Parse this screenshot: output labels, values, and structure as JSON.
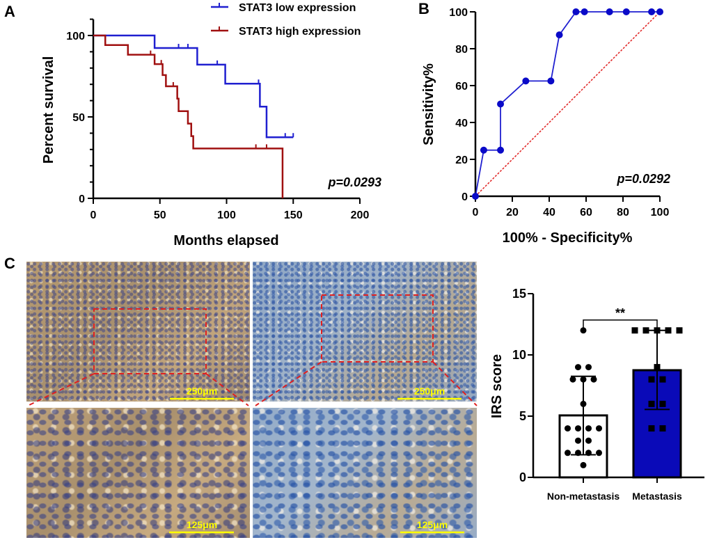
{
  "panel_labels": {
    "a": "A",
    "b": "B",
    "c": "C"
  },
  "colors": {
    "blue": "#1f1fd0",
    "red": "#a01010",
    "bar_fill": "#0a0ab8",
    "dashed": "#e02020",
    "scale": "#ffff00"
  },
  "chart_data": [
    {
      "type": "line",
      "subtype": "kaplan-meier",
      "xlabel": "Months elapsed",
      "ylabel": "Percent survival",
      "xlim": [
        0,
        200
      ],
      "ylim": [
        0,
        110
      ],
      "xticks": [
        "0",
        "50",
        "100",
        "150",
        "200"
      ],
      "yticks": [
        "0",
        "50",
        "100"
      ],
      "legend_position": "top-right",
      "annotation": "p=0.0293",
      "series": [
        {
          "name": "STAT3 low expression",
          "color": "#1f1fd0",
          "steps": [
            [
              0,
              100
            ],
            [
              46,
              92.3
            ],
            [
              78,
              82.1
            ],
            [
              99,
              70.4
            ],
            [
              125,
              56.3
            ],
            [
              130,
              37.5
            ],
            [
              150,
              37.5
            ]
          ],
          "censored": [
            [
              64,
              92.3
            ],
            [
              71,
              92.3
            ],
            [
              93,
              82.1
            ],
            [
              124,
              70.4
            ],
            [
              144,
              37.5
            ],
            [
              150,
              37.5
            ]
          ]
        },
        {
          "name": "STAT3 high expression",
          "color": "#a01010",
          "steps": [
            [
              0,
              100
            ],
            [
              9,
              94.1
            ],
            [
              26,
              88.2
            ],
            [
              46,
              82.4
            ],
            [
              52,
              75.7
            ],
            [
              54.5,
              68.8
            ],
            [
              63,
              61.2
            ],
            [
              64,
              53.5
            ],
            [
              71,
              45.9
            ],
            [
              73.5,
              38.2
            ],
            [
              75,
              30.6
            ],
            [
              142,
              0
            ]
          ],
          "censored": [
            [
              43,
              88.2
            ],
            [
              51,
              82.4
            ],
            [
              60,
              68.8
            ],
            [
              122,
              30.6
            ],
            [
              130,
              30.6
            ]
          ]
        }
      ]
    },
    {
      "type": "line",
      "subtype": "roc",
      "xlabel": "100% - Specificity%",
      "ylabel": "Sensitivity%",
      "xlim": [
        0,
        100
      ],
      "ylim": [
        0,
        100
      ],
      "xticks": [
        "0",
        "20",
        "40",
        "60",
        "80",
        "100"
      ],
      "yticks": [
        "0",
        "20",
        "40",
        "60",
        "80",
        "100"
      ],
      "annotation": "p=0.0292",
      "series": [
        {
          "name": "ROC",
          "color": "#1f1fd0",
          "x": [
            0,
            4.5,
            13.6,
            13.6,
            27.3,
            40.9,
            45.5,
            54.5,
            59.1,
            72.7,
            81.8,
            95.5,
            100
          ],
          "y": [
            0,
            25,
            25,
            50,
            62.5,
            62.5,
            87.5,
            100,
            100,
            100,
            100,
            100,
            100
          ]
        }
      ],
      "reference_line": {
        "x": [
          0,
          100
        ],
        "y": [
          0,
          100
        ],
        "style": "dashed",
        "color": "#e02020"
      }
    },
    {
      "type": "bar",
      "ylabel": "IRS score",
      "ylim": [
        0,
        15
      ],
      "yticks": [
        "0",
        "5",
        "10",
        "15"
      ],
      "categories": [
        "Non-metastasis",
        "Metastasis"
      ],
      "values": [
        5.06,
        8.75
      ],
      "sd_low": [
        1.85,
        5.55
      ],
      "sd_high": [
        8.25,
        12
      ],
      "points": [
        [
          12,
          9,
          9,
          8,
          8,
          8,
          6,
          4,
          4,
          4,
          4,
          3,
          3,
          2,
          2,
          2,
          2,
          1
        ],
        [
          12,
          12,
          12,
          12,
          12,
          9,
          8,
          8,
          6,
          6,
          4,
          4
        ]
      ],
      "significance": "**",
      "bracket_y": 12.85
    }
  ],
  "micrographs": {
    "scale_top": "250μm",
    "scale_bottom": "125μm"
  }
}
